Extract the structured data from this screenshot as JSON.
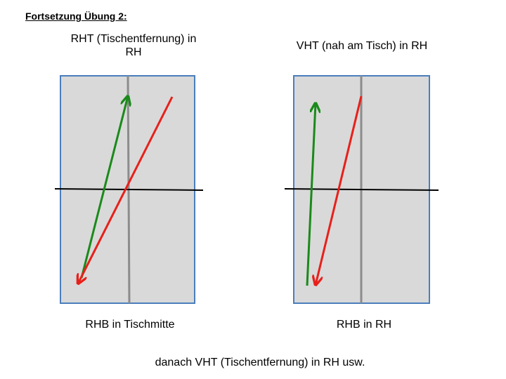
{
  "heading": "Fortsetzung Übung 2:",
  "left_panel": {
    "top_label": "RHT (Tischentfernung) in RH",
    "bottom_label": "RHB in Tischmitte"
  },
  "right_panel": {
    "top_label": "VHT (nah am Tisch) in RH",
    "bottom_label": "RHB in RH"
  },
  "footer": "danach VHT (Tischentfernung) in RH usw.",
  "colors": {
    "table_fill": "#d9d9d9",
    "table_border": "#4a7ebb",
    "center_line": "#8c8c8c",
    "net": "#000000",
    "arrow_green": "#1a8a1a",
    "arrow_red": "#e8201a"
  }
}
